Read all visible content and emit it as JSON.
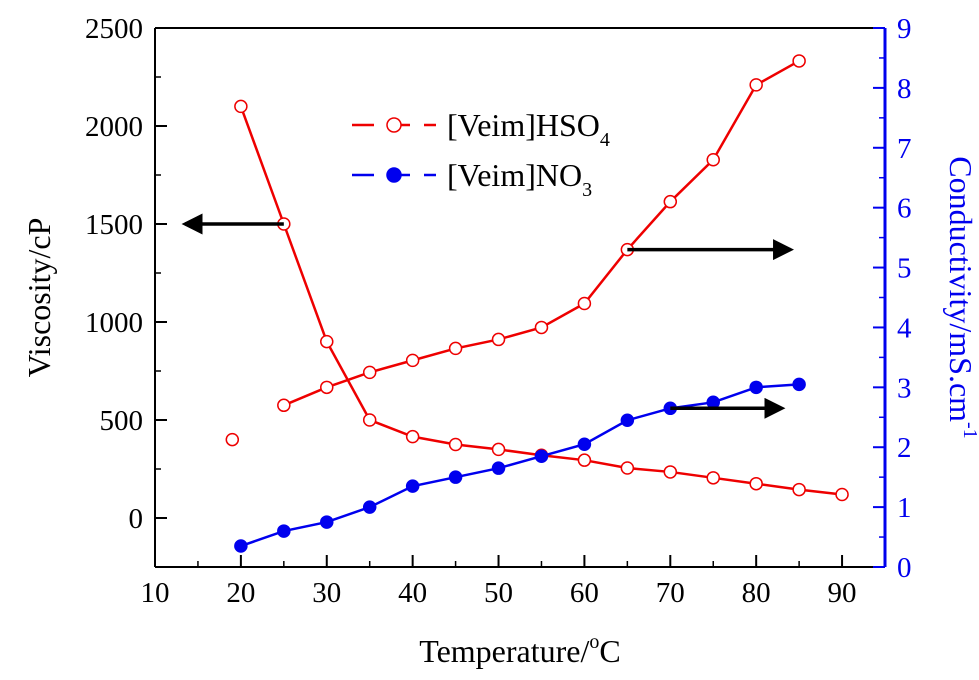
{
  "chart_data": {
    "type": "line",
    "x_axis": {
      "label": "Temperature/",
      "label_sup": "o",
      "label_unit": "C",
      "ticks": [
        10,
        20,
        30,
        40,
        50,
        60,
        70,
        80,
        90
      ],
      "range": [
        10,
        95
      ]
    },
    "y_left": {
      "label": "Viscosity/cP",
      "ticks": [
        0,
        500,
        1000,
        1500,
        2000,
        2500
      ],
      "range": [
        -250,
        2500
      ]
    },
    "y_right": {
      "label": "Conductivity/mS.cm",
      "label_sup": "-1",
      "ticks": [
        0,
        1,
        2,
        3,
        4,
        5,
        6,
        7,
        8,
        9
      ],
      "range": [
        0,
        9
      ],
      "color": "#0000ee"
    },
    "series": [
      {
        "name": "[Veim]HSO",
        "name_sub": "4",
        "property": "viscosity",
        "axis": "left",
        "color": "#ee0000",
        "marker": "open-circle",
        "x": [
          20,
          25,
          30,
          35,
          40,
          45,
          50,
          55,
          60,
          65,
          70,
          75,
          80,
          85,
          90
        ],
        "y": [
          2100,
          1500,
          900,
          500,
          415,
          375,
          350,
          320,
          295,
          255,
          235,
          205,
          175,
          145,
          120
        ]
      },
      {
        "name": "[Veim]HSO",
        "name_sub": "4",
        "property": "conductivity",
        "axis": "right",
        "color": "#ee0000",
        "marker": "open-circle",
        "x": [
          25,
          30,
          35,
          40,
          45,
          50,
          55,
          60,
          65,
          70,
          75,
          80,
          85
        ],
        "y": [
          2.7,
          3.0,
          3.25,
          3.45,
          3.65,
          3.8,
          4.0,
          4.4,
          5.3,
          6.1,
          6.8,
          8.05,
          8.45
        ]
      },
      {
        "name": "[Veim]NO",
        "name_sub": "3",
        "property": "conductivity",
        "axis": "right",
        "color": "#0000ee",
        "marker": "filled-circle",
        "x": [
          20,
          25,
          30,
          35,
          40,
          45,
          50,
          55,
          60,
          65,
          70,
          75,
          80,
          85
        ],
        "y": [
          0.35,
          0.6,
          0.75,
          1.0,
          1.35,
          1.5,
          1.65,
          1.85,
          2.05,
          2.45,
          2.65,
          2.75,
          3.0,
          3.05
        ]
      }
    ],
    "outlier_points": [
      {
        "axis": "left",
        "x": 19,
        "y": 400,
        "color": "#ee0000",
        "marker": "open-circle"
      }
    ],
    "arrows": [
      {
        "axis": "left",
        "from": [
          25,
          1500
        ],
        "to": [
          13.5,
          1500
        ],
        "color": "#000000"
      },
      {
        "axis": "right",
        "from": [
          65,
          5.3
        ],
        "to": [
          84,
          5.3
        ],
        "color": "#000000"
      },
      {
        "axis": "right",
        "from": [
          70,
          2.65
        ],
        "to": [
          83,
          2.65
        ],
        "color": "#000000"
      }
    ],
    "legend": {
      "position": "top-center"
    },
    "grid": false
  }
}
